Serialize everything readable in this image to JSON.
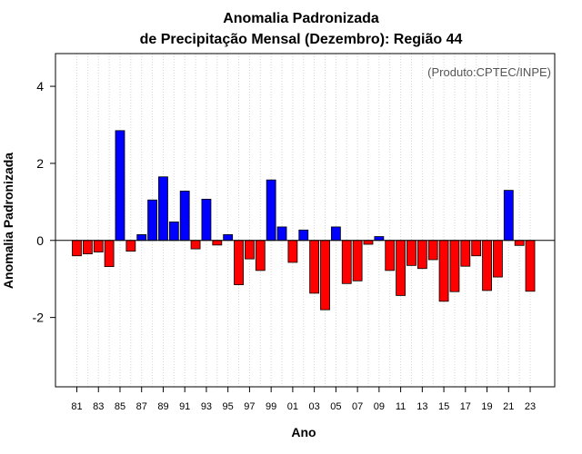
{
  "chart_data": {
    "type": "bar",
    "title": "Anomalia Padronizada",
    "subtitle": "de Precipitação Mensal (Dezembro): Região 44",
    "xlabel": "Ano",
    "ylabel": "Anomalia Padronizada",
    "annotation": "(Produto:CPTEC/INPE)",
    "ylim": [
      -3.8,
      4.85
    ],
    "y_ticks": [
      -2,
      0,
      2,
      4
    ],
    "y_tick_labels": [
      "-2",
      "0",
      "2",
      "4"
    ],
    "grid": "vertical dotted",
    "x_tick_labels": [
      "81",
      "83",
      "85",
      "87",
      "89",
      "91",
      "93",
      "95",
      "97",
      "99",
      "01",
      "03",
      "05",
      "07",
      "09",
      "11",
      "13",
      "15",
      "17",
      "19",
      "21",
      "23"
    ],
    "categories": [
      "81",
      "82",
      "83",
      "84",
      "85",
      "86",
      "87",
      "88",
      "89",
      "90",
      "91",
      "92",
      "93",
      "94",
      "95",
      "96",
      "97",
      "98",
      "99",
      "00",
      "01",
      "02",
      "03",
      "04",
      "05",
      "06",
      "07",
      "08",
      "09",
      "10",
      "11",
      "12",
      "13",
      "14",
      "15",
      "16",
      "17",
      "18",
      "19",
      "20",
      "21",
      "22",
      "23"
    ],
    "values": [
      -0.4,
      -0.35,
      -0.3,
      -0.68,
      2.85,
      -0.28,
      0.15,
      1.05,
      1.65,
      0.48,
      1.28,
      -0.22,
      1.07,
      -0.12,
      0.15,
      -1.15,
      -0.48,
      -0.78,
      1.57,
      0.35,
      -0.57,
      0.27,
      -1.37,
      -1.8,
      0.35,
      -1.12,
      -1.05,
      -0.1,
      0.1,
      -0.78,
      -1.43,
      -0.65,
      -0.73,
      -0.5,
      -1.58,
      -1.33,
      -0.67,
      -0.4,
      -1.3,
      -0.95,
      1.3,
      -0.13,
      -1.32
    ],
    "colors": {
      "positive": "#0000ff",
      "negative": "#ff0000",
      "outline": "#000000",
      "grid": "#d3d3d3"
    }
  }
}
